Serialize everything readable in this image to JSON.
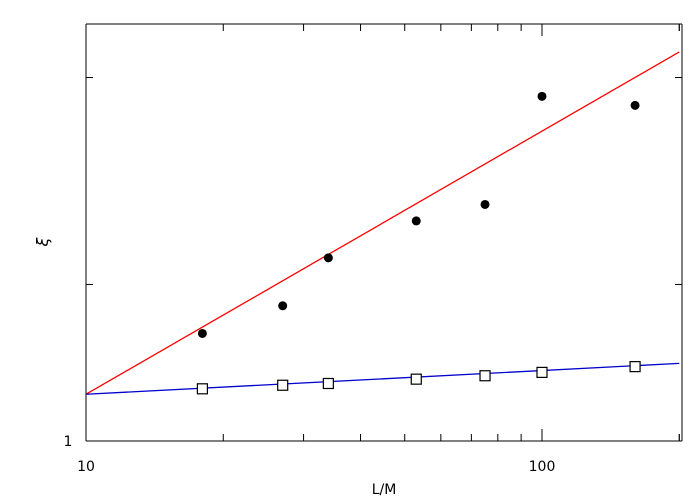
{
  "chart_data": {
    "type": "scatter",
    "title": "",
    "xlabel": "L/M",
    "ylabel": "ξ",
    "x_scale": "log",
    "y_scale": "log",
    "xlim": [
      10,
      200
    ],
    "ylim": [
      1,
      10
    ],
    "x_tick_labels": [
      {
        "value": 10,
        "label": "10"
      },
      {
        "value": 100,
        "label": "100"
      }
    ],
    "y_tick_labels": [
      {
        "value": 1,
        "label": "1"
      }
    ],
    "grid": false,
    "legend": "none",
    "series": [
      {
        "marker": "filled-circle",
        "color": "#000000",
        "x": [
          18,
          27,
          34,
          53,
          75,
          100,
          160
        ],
        "y": [
          1.61,
          1.82,
          2.25,
          2.65,
          2.85,
          4.6,
          4.42
        ]
      },
      {
        "marker": "open-square",
        "color": "#000000",
        "x": [
          18,
          27,
          34,
          53,
          75,
          100,
          160
        ],
        "y": [
          1.26,
          1.28,
          1.29,
          1.315,
          1.335,
          1.355,
          1.39
        ]
      }
    ],
    "fit_lines": [
      {
        "color": "#ff0000",
        "x": [
          10,
          200
        ],
        "y": [
          1.23,
          5.6
        ]
      },
      {
        "color": "#0000cc",
        "x": [
          10,
          200
        ],
        "y": [
          1.23,
          1.41
        ]
      }
    ]
  }
}
